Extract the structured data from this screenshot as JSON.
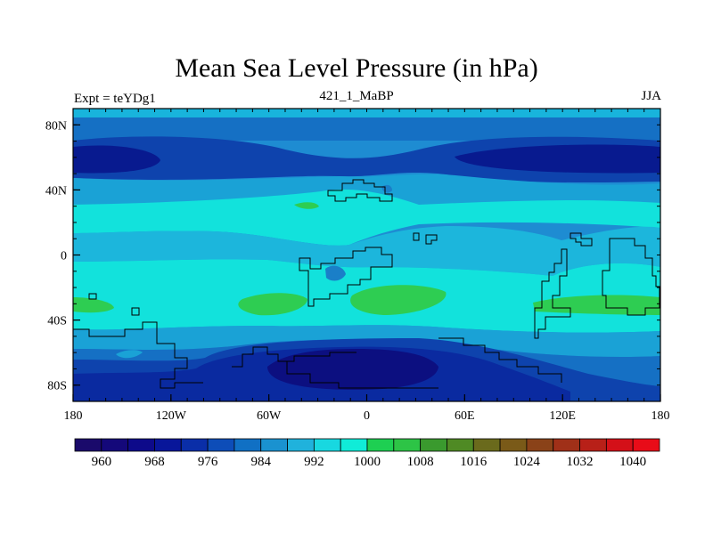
{
  "title": "Mean Sea Level Pressure (in hPa)",
  "subtitle_left": "Expt = teYDg1",
  "subtitle_center": "421_1_MaBP",
  "subtitle_right": "JJA",
  "map": {
    "variable": "Mean Sea Level Pressure",
    "units": "hPa",
    "lon_range": [
      -180,
      180
    ],
    "lat_range": [
      -90,
      90
    ],
    "x_ticks": [
      {
        "lon": -180,
        "label": "180"
      },
      {
        "lon": -120,
        "label": "120W"
      },
      {
        "lon": -60,
        "label": "60W"
      },
      {
        "lon": 0,
        "label": "0"
      },
      {
        "lon": 60,
        "label": "60E"
      },
      {
        "lon": 120,
        "label": "120E"
      },
      {
        "lon": 180,
        "label": "180"
      }
    ],
    "y_ticks": [
      {
        "lat": 80,
        "label": "80N"
      },
      {
        "lat": 40,
        "label": "40N"
      },
      {
        "lat": 0,
        "label": "0"
      },
      {
        "lat": -40,
        "label": "40S"
      },
      {
        "lat": -80,
        "label": "80S"
      }
    ]
  },
  "colorbar": {
    "levels": [
      960,
      964,
      968,
      972,
      976,
      980,
      984,
      988,
      992,
      996,
      1000,
      1004,
      1008,
      1012,
      1016,
      1020,
      1024,
      1028,
      1032,
      1036,
      1040
    ],
    "labels": [
      "960",
      "968",
      "976",
      "984",
      "992",
      "1000",
      "1008",
      "1016",
      "1024",
      "1032",
      "1040"
    ],
    "colors": [
      "#1a0a6b",
      "#14087a",
      "#0d0a8a",
      "#08169a",
      "#0a2ea8",
      "#0d4db8",
      "#1070c4",
      "#1a92d0",
      "#20b2dc",
      "#18d8e0",
      "#10ecd8",
      "#1ecf52",
      "#2dc446",
      "#3a9a2e",
      "#4f8a24",
      "#6a6a1c",
      "#7a5a18",
      "#8a4218",
      "#a03018",
      "#b82018",
      "#d41018",
      "#e80c18"
    ]
  }
}
